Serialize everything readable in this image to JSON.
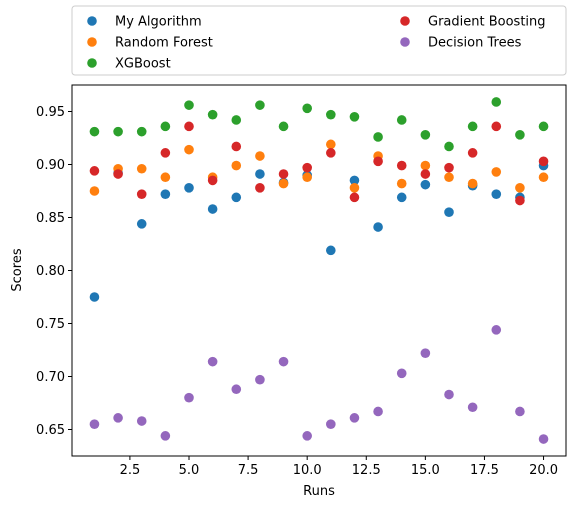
{
  "chart_data": {
    "type": "scatter",
    "xlabel": "Runs",
    "ylabel": "Scores",
    "xlim": [
      0.05,
      20.95
    ],
    "ylim": [
      0.625,
      0.975
    ],
    "xticks": [
      2.5,
      5.0,
      7.5,
      10.0,
      12.5,
      15.0,
      17.5,
      20.0
    ],
    "xtick_labels": [
      "2.5",
      "5.0",
      "7.5",
      "10.0",
      "12.5",
      "15.0",
      "17.5",
      "20.0"
    ],
    "yticks": [
      0.65,
      0.7,
      0.75,
      0.8,
      0.85,
      0.9,
      0.95
    ],
    "ytick_labels": [
      "0.65",
      "0.70",
      "0.75",
      "0.80",
      "0.85",
      "0.90",
      "0.95"
    ],
    "grid": false,
    "legend": {
      "placement": "above plot, two columns"
    },
    "x": [
      1,
      2,
      3,
      4,
      5,
      6,
      7,
      8,
      9,
      10,
      11,
      12,
      13,
      14,
      15,
      16,
      17,
      18,
      19,
      20
    ],
    "series": [
      {
        "name": "My Algorithm",
        "color": "#1f77b4",
        "values": [
          0.775,
          0.892,
          0.844,
          0.872,
          0.878,
          0.858,
          0.869,
          0.891,
          0.883,
          0.89,
          0.819,
          0.885,
          0.841,
          0.869,
          0.881,
          0.855,
          0.88,
          0.872,
          0.869,
          0.899
        ]
      },
      {
        "name": "Random Forest",
        "color": "#ff7f0e",
        "values": [
          0.875,
          0.896,
          0.896,
          0.888,
          0.914,
          0.888,
          0.899,
          0.908,
          0.882,
          0.888,
          0.919,
          0.878,
          0.908,
          0.882,
          0.899,
          0.888,
          0.882,
          0.893,
          0.878,
          0.888
        ]
      },
      {
        "name": "XGBoost",
        "color": "#2ca02c",
        "values": [
          0.931,
          0.931,
          0.931,
          0.936,
          0.956,
          0.947,
          0.942,
          0.956,
          0.936,
          0.953,
          0.947,
          0.945,
          0.926,
          0.942,
          0.928,
          0.917,
          0.936,
          0.959,
          0.928,
          0.936
        ]
      },
      {
        "name": "Gradient Boosting",
        "color": "#d62728",
        "values": [
          0.894,
          0.891,
          0.872,
          0.911,
          0.936,
          0.885,
          0.917,
          0.878,
          0.891,
          0.897,
          0.911,
          0.869,
          0.903,
          0.899,
          0.891,
          0.897,
          0.911,
          0.936,
          0.866,
          0.903
        ]
      },
      {
        "name": "Decision Trees",
        "color": "#9467bd",
        "values": [
          0.655,
          0.661,
          0.658,
          0.644,
          0.68,
          0.714,
          0.688,
          0.697,
          0.714,
          0.644,
          0.655,
          0.661,
          0.667,
          0.703,
          0.722,
          0.683,
          0.671,
          0.744,
          0.667,
          0.641
        ]
      }
    ]
  }
}
